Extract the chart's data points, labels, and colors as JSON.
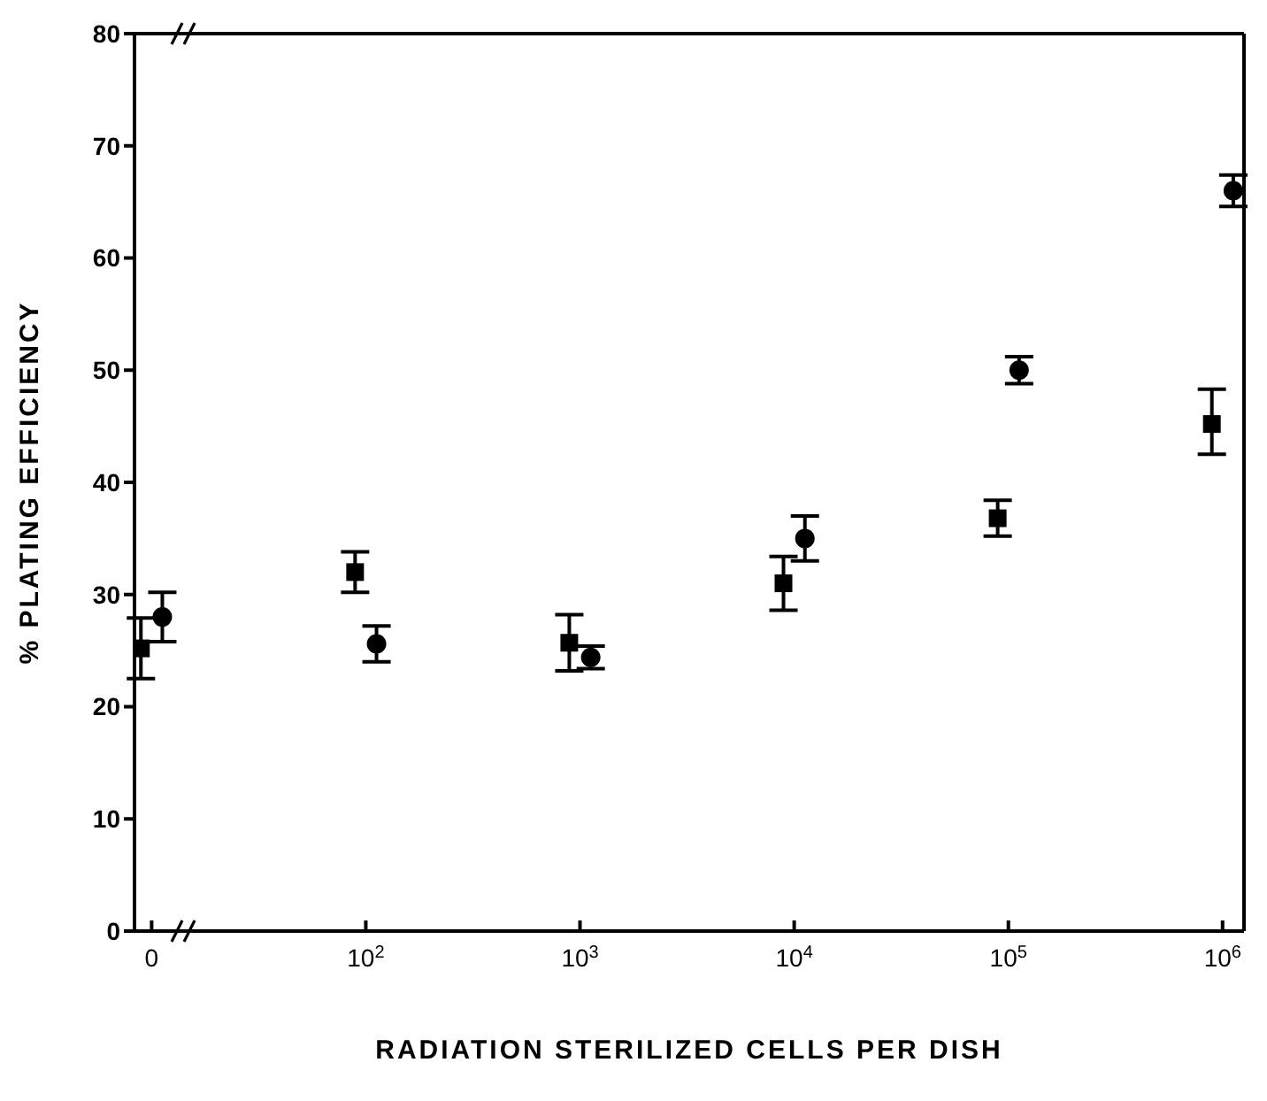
{
  "chart_data": {
    "type": "scatter",
    "xlabel": "RADIATION STERILIZED CELLS PER DISH",
    "ylabel": "% PLATING EFFICIENCY",
    "categories": [
      "0",
      "10$^{2}$",
      "10$^{3}$",
      "10$^{4}$",
      "10$^{5}$",
      "10$^{6}$"
    ],
    "ylim": [
      0,
      80
    ],
    "yticks": [
      0,
      10,
      20,
      30,
      40,
      50,
      60,
      70,
      80
    ],
    "grid": false,
    "legend": false,
    "series": [
      {
        "color": "#000000",
        "marker": "square",
        "x": [
          "0",
          "10$^{2}$",
          "10$^{3}$",
          "10$^{4}$",
          "10$^{5}$",
          "10$^{6}$"
        ],
        "values": [
          25.2,
          32.0,
          25.7,
          31.0,
          36.8,
          45.2
        ],
        "errors": [
          2.7,
          1.8,
          2.5,
          2.4,
          1.6,
          [
            42.5,
            48.3
          ]
        ]
      },
      {
        "color": "#000000",
        "marker": "circle",
        "x": [
          "0",
          "10$^{2}$",
          "10$^{3}$",
          "10$^{4}$",
          "10$^{5}$",
          "10$^{6}$"
        ],
        "values": [
          28.0,
          25.6,
          24.4,
          35.0,
          50.0,
          66.0
        ],
        "errors": [
          2.2,
          1.6,
          1.0,
          2.0,
          1.2,
          1.4
        ]
      }
    ]
  }
}
